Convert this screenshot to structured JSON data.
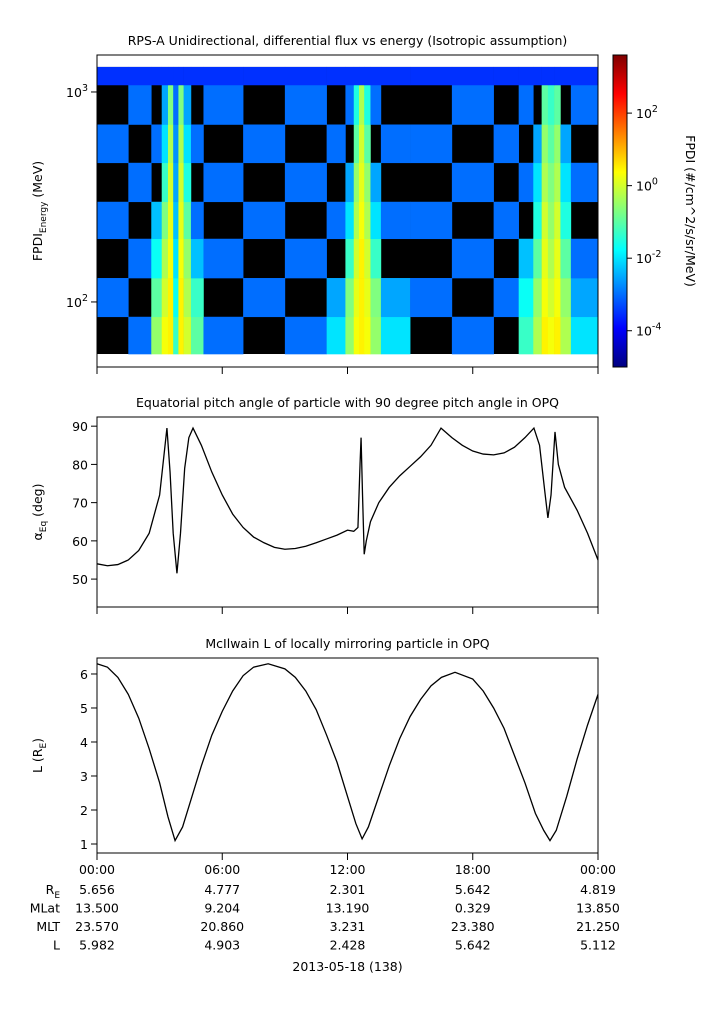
{
  "chart_data": [
    {
      "type": "heatmap",
      "title": "RPS-A Unidirectional, differential flux vs energy (Isotropic assumption)",
      "ylabel": [
        {
          "text": "FPDI"
        },
        {
          "sub": "Energy"
        },
        {
          "text": " (MeV)"
        }
      ],
      "xlim": [
        0,
        24
      ],
      "xticks": [
        0,
        6,
        12,
        18,
        24
      ],
      "ylog": true,
      "ylim": [
        49,
        1500
      ],
      "yticks": [
        {
          "value": 100,
          "label": "10",
          "exponent": "2"
        },
        {
          "value": 1000,
          "label": "10",
          "exponent": "3"
        }
      ],
      "x_edges": [
        0,
        1.5,
        2.6,
        3.1,
        3.4,
        3.65,
        3.9,
        4.15,
        4.5,
        5.1,
        7,
        9,
        11,
        11.9,
        12.3,
        12.55,
        12.8,
        13.1,
        13.6,
        15,
        17,
        19,
        20.2,
        20.9,
        21.3,
        21.6,
        21.9,
        22.2,
        22.7,
        24
      ],
      "y_edges": [
        56.5,
        85,
        130,
        200,
        300,
        460,
        700,
        1080,
        1316
      ],
      "z": [
        [
          null,
          0.001,
          0.3,
          2,
          3,
          0.05,
          3,
          1,
          0.1,
          0.001,
          null,
          0.001,
          0.01,
          0.3,
          2,
          3,
          2,
          0.3,
          0.01,
          null,
          0.001,
          null,
          0.05,
          0.5,
          3,
          2,
          3,
          0.5,
          0.01
        ],
        [
          0.001,
          null,
          0.1,
          1,
          3,
          0.02,
          3,
          0.5,
          0.05,
          null,
          0.001,
          null,
          0.003,
          0.2,
          1.5,
          3,
          1.5,
          0.2,
          0.003,
          0.001,
          null,
          0.001,
          0.02,
          0.3,
          2,
          1,
          2,
          0.3,
          0.003
        ],
        [
          null,
          0.001,
          0.02,
          0.5,
          2,
          0.01,
          2,
          0.3,
          0.005,
          0.001,
          null,
          0.001,
          null,
          0.05,
          1,
          3,
          1,
          0.05,
          null,
          null,
          0.001,
          null,
          0.005,
          0.1,
          1.5,
          0.5,
          1.5,
          0.1,
          0.001
        ],
        [
          0.001,
          null,
          0.005,
          0.2,
          1.5,
          0.005,
          1.5,
          0.1,
          0.001,
          null,
          0.001,
          null,
          0.001,
          0.01,
          0.5,
          2,
          0.5,
          0.01,
          0.001,
          0.001,
          null,
          0.001,
          null,
          0.03,
          1,
          0.3,
          1,
          0.03,
          null
        ],
        [
          null,
          0.001,
          null,
          0.05,
          1,
          0.003,
          1,
          0.03,
          null,
          0.001,
          null,
          0.001,
          null,
          0.003,
          0.3,
          1.5,
          0.3,
          0.003,
          null,
          null,
          0.001,
          null,
          0.001,
          0.01,
          0.5,
          0.2,
          0.5,
          0.01,
          0.001
        ],
        [
          0.001,
          null,
          0.001,
          0.01,
          0.5,
          0.002,
          0.5,
          0.01,
          0.001,
          null,
          0.001,
          null,
          0.001,
          null,
          0.1,
          1,
          0.1,
          null,
          0.001,
          0.001,
          null,
          0.001,
          null,
          0.003,
          0.3,
          0.1,
          0.3,
          0.003,
          null
        ],
        [
          null,
          0.001,
          null,
          0.003,
          0.2,
          0.001,
          0.2,
          0.003,
          null,
          0.001,
          null,
          0.001,
          null,
          0.001,
          0.03,
          0.5,
          0.03,
          0.001,
          null,
          null,
          0.001,
          null,
          0.001,
          null,
          0.1,
          0.05,
          0.1,
          null,
          0.001
        ],
        [
          0.0003,
          0.0003,
          0.0003,
          0.0003,
          0.0003,
          0.0003,
          0.0003,
          0.0003,
          0.0003,
          0.0003,
          0.0003,
          0.0003,
          0.0003,
          0.0003,
          0.0003,
          0.0003,
          0.0003,
          0.0003,
          0.0003,
          0.0003,
          0.0003,
          0.0003,
          0.0003,
          0.0003,
          0.0003,
          0.0003,
          0.0003,
          0.0003,
          0.0003
        ]
      ],
      "colormap": "jet",
      "zlog": true,
      "zlim": [
        1e-05,
        4000
      ],
      "zticks": [
        {
          "value": 0.0001,
          "label": "10",
          "exponent": "-4"
        },
        {
          "value": 0.01,
          "label": "10",
          "exponent": "-2"
        },
        {
          "value": 1,
          "label": "10",
          "exponent": "0"
        },
        {
          "value": 100,
          "label": "10",
          "exponent": "2"
        }
      ],
      "zlabel": "FPDI (#/cm^2/s/sr/MeV)"
    },
    {
      "type": "line",
      "title": "Equatorial pitch angle of particle with 90 degree pitch angle in OPQ",
      "ylabel": [
        {
          "text": "α"
        },
        {
          "sub": "Eq"
        },
        {
          "text": " (deg)"
        }
      ],
      "xlim": [
        0,
        24
      ],
      "xticks": [
        0,
        6,
        12,
        18,
        24
      ],
      "ylim": [
        42.7,
        92.4
      ],
      "yticks": [
        50,
        60,
        70,
        80,
        90
      ],
      "color": "#000000",
      "x": [
        0,
        0.5,
        1,
        1.5,
        2,
        2.5,
        3,
        3.2,
        3.35,
        3.5,
        3.65,
        3.83,
        4.0,
        4.2,
        4.4,
        4.6,
        5.0,
        5.5,
        6,
        6.5,
        7,
        7.5,
        8,
        8.5,
        9,
        9.5,
        10,
        10.5,
        11,
        11.5,
        12,
        12.3,
        12.5,
        12.6,
        12.65,
        12.72,
        12.8,
        12.9,
        13.1,
        13.5,
        14,
        14.5,
        15,
        15.5,
        16,
        16.48,
        17,
        17.5,
        18,
        18.5,
        19,
        19.5,
        20,
        20.5,
        20.93,
        21.2,
        21.45,
        21.6,
        21.75,
        21.94,
        22.1,
        22.4,
        23,
        23.5,
        24
      ],
      "values": [
        54,
        53.5,
        53.8,
        55,
        57.5,
        62,
        72,
        82,
        89.5,
        78,
        62,
        51.5,
        62,
        79,
        87,
        89.5,
        85,
        78,
        72,
        67,
        63.5,
        61,
        59.5,
        58.3,
        57.8,
        58,
        58.6,
        59.5,
        60.5,
        61.5,
        62.8,
        62.5,
        63.5,
        80,
        87,
        72,
        56.5,
        60,
        65,
        70,
        74,
        77,
        79.5,
        82,
        85,
        89.5,
        87,
        85,
        83.5,
        82.7,
        82.5,
        83,
        84.5,
        87,
        89.5,
        85,
        73,
        66,
        72,
        88.5,
        80,
        74,
        68,
        62,
        55
      ]
    },
    {
      "type": "line",
      "title": "McIlwain L of locally mirroring particle in OPQ",
      "ylabel": [
        {
          "text": "L (R"
        },
        {
          "sub": "E"
        },
        {
          "text": ")"
        }
      ],
      "xlim": [
        0,
        24
      ],
      "xticks": [
        {
          "value": 0,
          "label": "00:00"
        },
        {
          "value": 6,
          "label": "06:00"
        },
        {
          "value": 12,
          "label": "12:00"
        },
        {
          "value": 18,
          "label": "18:00"
        },
        {
          "value": 24,
          "label": "00:00"
        }
      ],
      "ylim": [
        0.735,
        6.47
      ],
      "yticks": [
        1,
        2,
        3,
        4,
        5,
        6
      ],
      "color": "#000000",
      "x": [
        0,
        0.5,
        1,
        1.5,
        2,
        2.5,
        3,
        3.4,
        3.74,
        4.1,
        4.5,
        5,
        5.5,
        6,
        6.5,
        7,
        7.5,
        8.2,
        9,
        9.5,
        10,
        10.5,
        11,
        11.5,
        12,
        12.4,
        12.7,
        13,
        13.5,
        14,
        14.5,
        15,
        15.5,
        16,
        16.5,
        17.15,
        18,
        18.5,
        19,
        19.5,
        20,
        20.5,
        21,
        21.4,
        21.7,
        22,
        22.5,
        23,
        23.5,
        24
      ],
      "values": [
        6.3,
        6.2,
        5.9,
        5.4,
        4.7,
        3.8,
        2.8,
        1.8,
        1.1,
        1.5,
        2.3,
        3.3,
        4.2,
        4.9,
        5.5,
        5.95,
        6.2,
        6.3,
        6.15,
        5.9,
        5.5,
        4.95,
        4.2,
        3.4,
        2.4,
        1.6,
        1.15,
        1.5,
        2.4,
        3.3,
        4.1,
        4.75,
        5.25,
        5.65,
        5.9,
        6.05,
        5.85,
        5.5,
        5.0,
        4.4,
        3.6,
        2.8,
        1.9,
        1.4,
        1.1,
        1.4,
        2.4,
        3.5,
        4.5,
        5.4
      ],
      "xlabel": "2013-05-18 (138)"
    }
  ],
  "ephemeris": {
    "rows": [
      {
        "label": "R",
        "sub": "E",
        "values": [
          "5.656",
          "4.777",
          "2.301",
          "5.642",
          "4.819"
        ]
      },
      {
        "label": "MLat",
        "values": [
          "13.500",
          "9.204",
          "13.190",
          "0.329",
          "13.850"
        ]
      },
      {
        "label": "MLT",
        "values": [
          "23.570",
          "20.860",
          "3.231",
          "23.380",
          "21.250"
        ]
      },
      {
        "label": "L",
        "values": [
          "5.982",
          "4.903",
          "2.428",
          "5.642",
          "5.112"
        ]
      }
    ]
  }
}
